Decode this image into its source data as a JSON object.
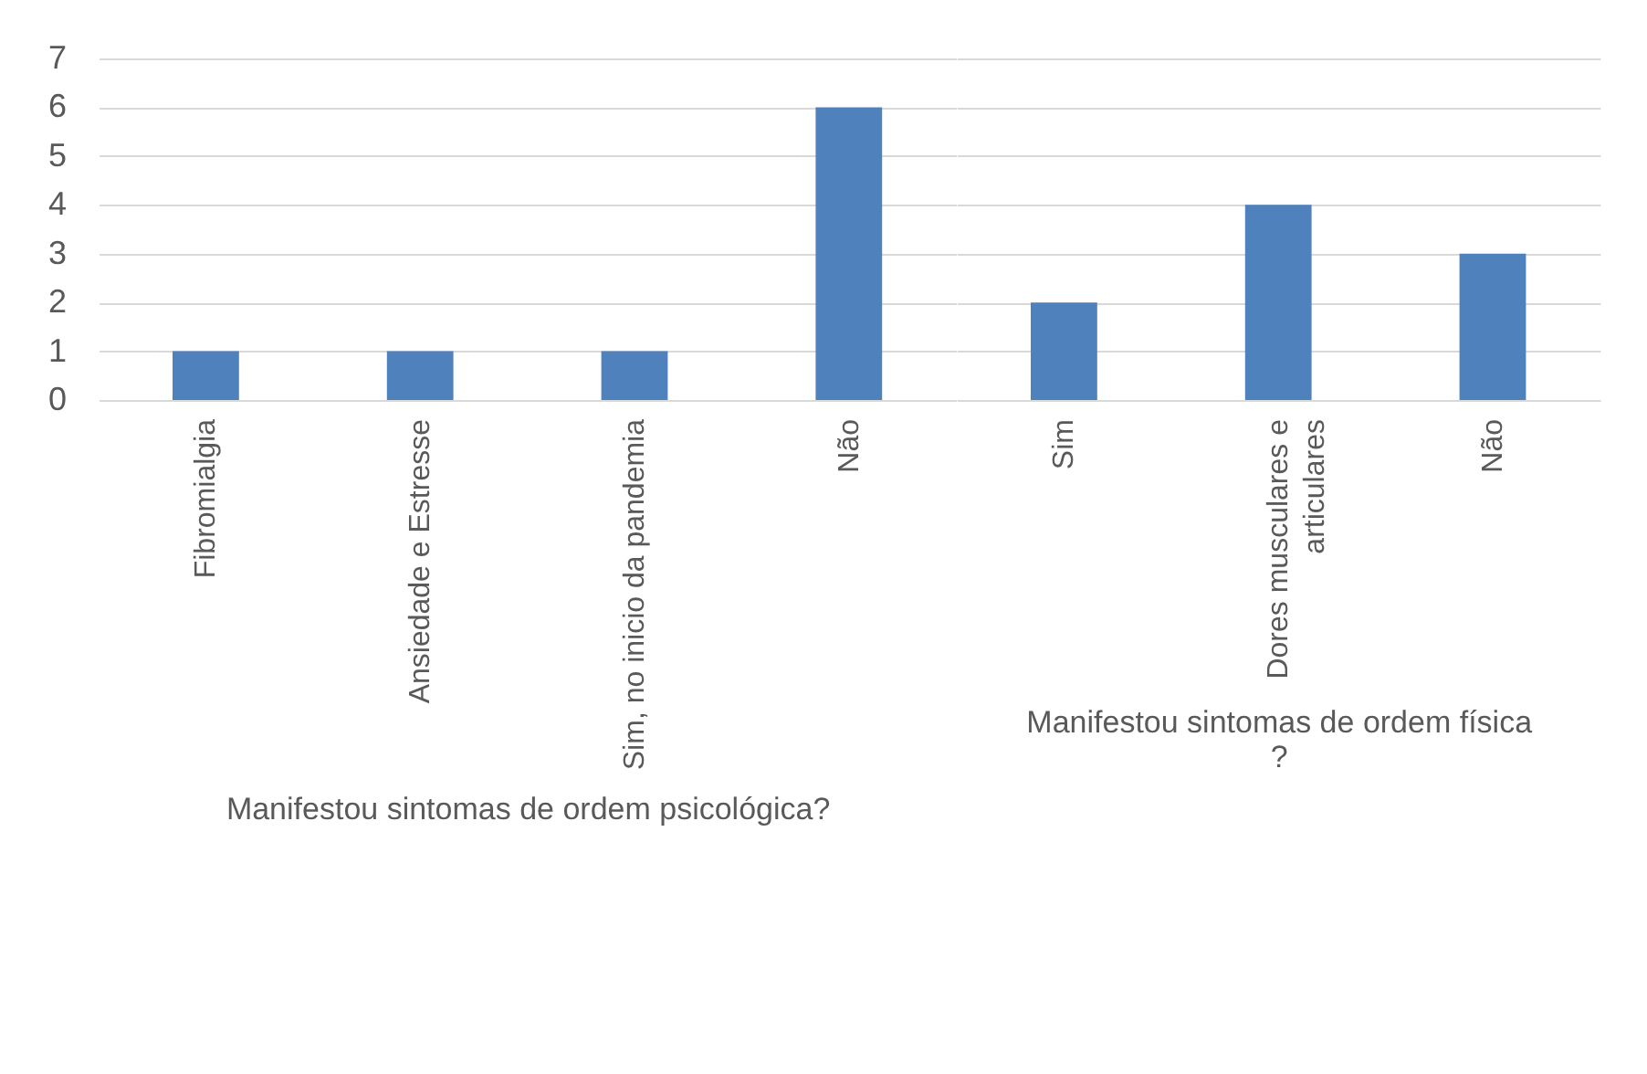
{
  "chart_data": [
    {
      "type": "bar",
      "categories": [
        "Fibromialgia",
        "Ansiedade e Estresse",
        "Sim, no inicio da pandemia",
        "Não"
      ],
      "values": [
        1,
        1,
        1,
        6
      ],
      "color": "#4f81bd",
      "xlabel": "Manifestou sintomas de ordem psicológica?",
      "ylim": [
        0,
        7
      ],
      "yticks": [
        0,
        1,
        2,
        3,
        4,
        5,
        6,
        7
      ],
      "grid": "y"
    },
    {
      "type": "bar",
      "categories": [
        "Sim",
        "Dores musculares e articulares",
        "Não"
      ],
      "values": [
        2,
        4,
        3
      ],
      "color": "#4f81bd",
      "xlabel": "Manifestou sintomas de ordem física ?",
      "ylim": [
        0,
        7
      ],
      "yticks": [
        0,
        1,
        2,
        3,
        4,
        5,
        6,
        7
      ],
      "grid": "y",
      "tick_labels": "x"
    }
  ]
}
